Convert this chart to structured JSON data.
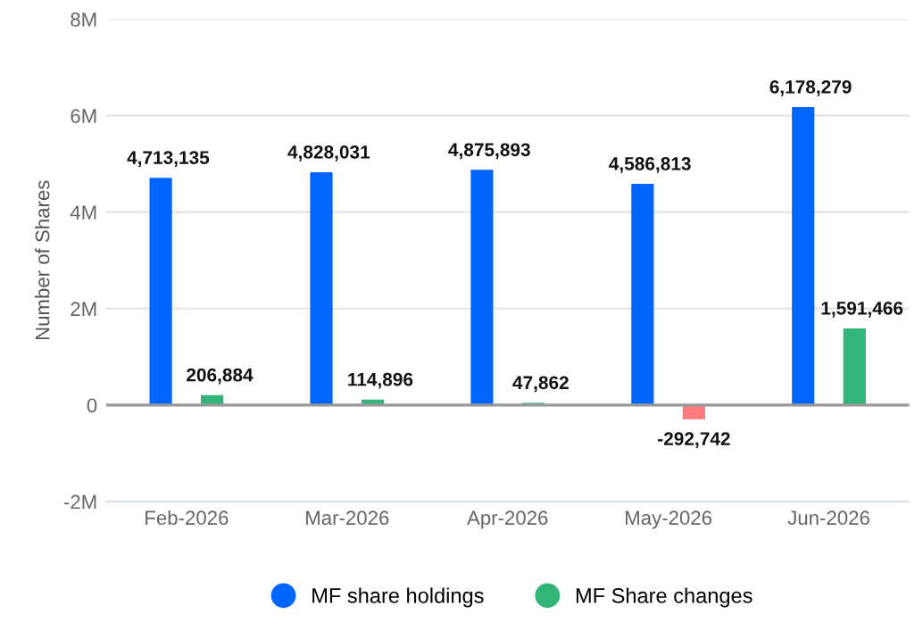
{
  "chart_data": {
    "type": "bar",
    "ylabel": "Number of Shares",
    "categories": [
      "Feb-2026",
      "Mar-2026",
      "Apr-2026",
      "May-2026",
      "Jun-2026"
    ],
    "series": [
      {
        "name": "MF share holdings",
        "color": "#0066ff",
        "values": [
          4713135,
          4828031,
          4875893,
          4586813,
          6178279
        ],
        "value_labels": [
          "4,713,135",
          "4,828,031",
          "4,875,893",
          "4,586,813",
          "6,178,279"
        ]
      },
      {
        "name": "MF Share changes",
        "color": "#33b57a",
        "colors": [
          "#33b57a",
          "#33b57a",
          "#33b57a",
          "#ff7b7b",
          "#33b57a"
        ],
        "values": [
          206884,
          114896,
          47862,
          -292742,
          1591466
        ],
        "value_labels": [
          "206,884",
          "114,896",
          "47,862",
          "-292,742",
          "1,591,466"
        ]
      }
    ],
    "ylim": [
      -2000000,
      8000000
    ],
    "yticks": [
      {
        "value": -2000000,
        "label": "-2M"
      },
      0,
      {
        "value": 2000000,
        "label": "2M"
      },
      {
        "value": 4000000,
        "label": "4M"
      },
      {
        "value": 6000000,
        "label": "6M"
      },
      {
        "value": 8000000,
        "label": "8M"
      }
    ],
    "grid": "y",
    "legend": "bottom"
  }
}
